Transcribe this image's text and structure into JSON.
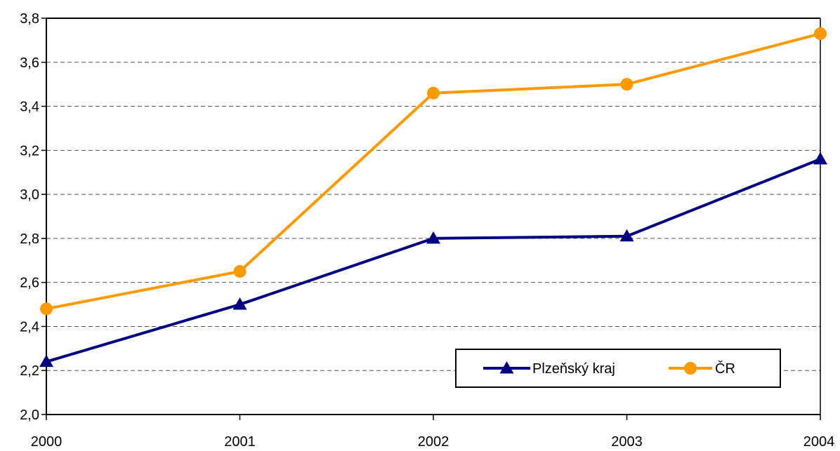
{
  "chart_data": {
    "type": "line",
    "title": "",
    "xlabel": "",
    "ylabel": "",
    "categories": [
      "2000",
      "2001",
      "2002",
      "2003",
      "2004"
    ],
    "y_ticks": [
      "2,0",
      "2,2",
      "2,4",
      "2,6",
      "2,8",
      "3,0",
      "3,2",
      "3,4",
      "3,6",
      "3,8"
    ],
    "ylim": [
      2.0,
      3.8
    ],
    "y_tick_step": 0.2,
    "grid": "horizontal dashed",
    "legend_position": "bottom-right",
    "series": [
      {
        "name": "Plzeňský kraj",
        "values": [
          2.24,
          2.5,
          2.8,
          2.81,
          3.16
        ],
        "color": "#000080",
        "marker": "triangle"
      },
      {
        "name": "ČR",
        "values": [
          2.48,
          2.65,
          3.46,
          3.5,
          3.73
        ],
        "color": "#FF9900",
        "marker": "circle"
      }
    ]
  }
}
